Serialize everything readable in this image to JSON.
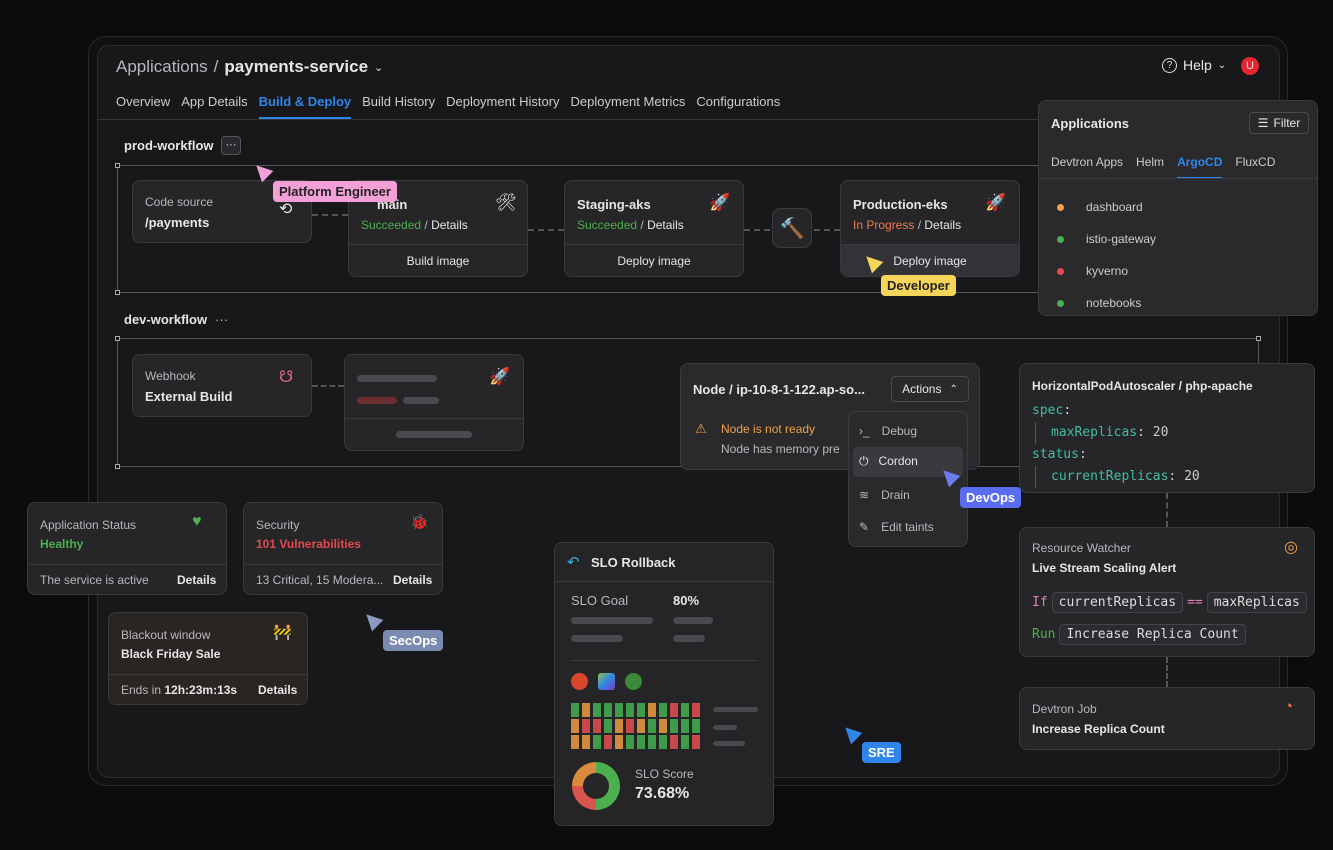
{
  "header": {
    "breadcrumb_root": "Applications",
    "separator": "/",
    "app_name": "payments-service",
    "help": "Help",
    "avatar": "U"
  },
  "tabs": [
    {
      "label": "Overview"
    },
    {
      "label": "App Details"
    },
    {
      "label": "Build & Deploy",
      "active": true
    },
    {
      "label": "Build History"
    },
    {
      "label": "Deployment History"
    },
    {
      "label": "Deployment Metrics"
    },
    {
      "label": "Configurations"
    }
  ],
  "prod": {
    "label": "prod-workflow",
    "more": "···",
    "source": {
      "title": "Code source",
      "value": "/payments"
    },
    "build": {
      "title": "main",
      "status": "Succeeded",
      "details": "Details",
      "sep": "/",
      "action": "Build image"
    },
    "staging": {
      "title": "Staging-aks",
      "status": "Succeeded",
      "details": "Details",
      "sep": "/",
      "action": "Deploy image"
    },
    "production": {
      "title": "Production-eks",
      "status": "In Progress",
      "details": "Details",
      "sep": "/",
      "action": "Deploy image"
    }
  },
  "dev": {
    "label": "dev-workflow",
    "more": "···",
    "webhook": {
      "title": "Webhook",
      "value": "External Build"
    }
  },
  "node": {
    "title": "Node / ip-10-8-1-122.ap-so...",
    "actions": "Actions",
    "warning": "Node is not ready",
    "detail": "Node has memory pre",
    "menu": [
      "Debug",
      "Cordon",
      "Drain",
      "Edit taints"
    ]
  },
  "hpa": {
    "title": "HorizontalPodAutoscaler / php-apache",
    "spec": "spec",
    "max_key": "maxReplicas",
    "max_val": "20",
    "status": "status",
    "cur_key": "currentReplicas",
    "cur_val": "20"
  },
  "watcher": {
    "label": "Resource Watcher",
    "title": "Live Stream Scaling Alert",
    "if": "If",
    "lhs": "currentReplicas",
    "op": "==",
    "rhs": "maxReplicas",
    "run": "Run",
    "action": "Increase Replica Count"
  },
  "job": {
    "label": "Devtron Job",
    "title": "Increase Replica Count"
  },
  "apps": {
    "title": "Applications",
    "filter": "Filter",
    "tabs": [
      "Devtron Apps",
      "Helm",
      "ArgoCD",
      "FluxCD"
    ],
    "active_tab": "ArgoCD",
    "items": [
      {
        "name": "dashboard",
        "color": "#f0a04b"
      },
      {
        "name": "istio-gateway",
        "color": "#4caf50"
      },
      {
        "name": "kyverno",
        "color": "#e5484d"
      },
      {
        "name": "notebooks",
        "color": "#4caf50"
      }
    ]
  },
  "status": {
    "label": "Application Status",
    "value": "Healthy",
    "note": "The service is active",
    "details": "Details"
  },
  "security": {
    "label": "Security",
    "value": "101 Vulnerabilities",
    "note": "13 Critical, 15 Modera...",
    "details": "Details"
  },
  "blackout": {
    "label": "Blackout window",
    "value": "Black Friday Sale",
    "ends": "Ends in",
    "time": "12h:23m:13s",
    "details": "Details"
  },
  "slo": {
    "title": "SLO Rollback",
    "goal_label": "SLO Goal",
    "goal": "80%",
    "score_label": "SLO Score",
    "score": "73.68%",
    "grid": [
      "GOGGGGGOGRGR",
      "ORRGOROGOGGG",
      "OOGROGGGGRGR"
    ],
    "donut": [
      {
        "color": "#4caf50",
        "pct": 50
      },
      {
        "color": "#d9534f",
        "pct": 25
      },
      {
        "color": "#d98a3d",
        "pct": 25
      }
    ]
  },
  "personas": {
    "platform": "Platform Engineer",
    "developer": "Developer",
    "devops": "DevOps",
    "secops": "SecOps",
    "sre": "SRE"
  },
  "colors": {
    "accent": "#2f86e8",
    "green": "#4caf50",
    "red": "#e5484d",
    "orange": "#f0a04b"
  }
}
